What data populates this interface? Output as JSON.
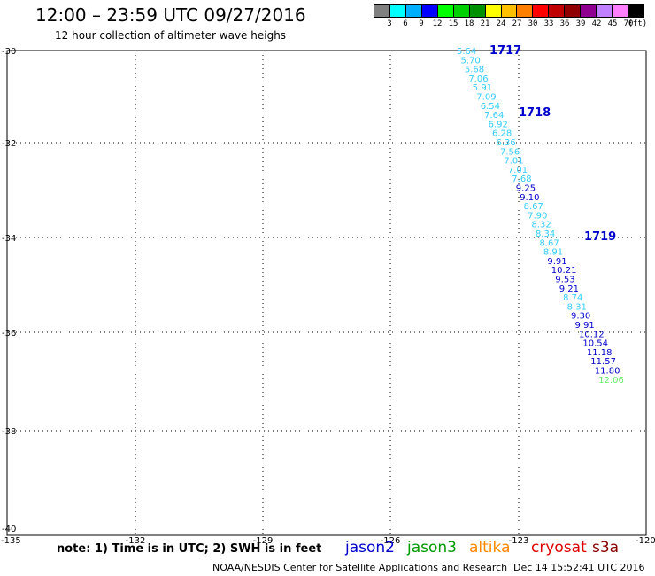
{
  "title": "12:00 – 23:59 UTC 09/27/2016",
  "subtitle": "12 hour collection of altimeter wave heighs",
  "color_scale": {
    "colors": [
      "#808080",
      "#00ffff",
      "#00b0ff",
      "#0000ff",
      "#00ff00",
      "#00d000",
      "#009000",
      "#ffff00",
      "#ffc000",
      "#ff8000",
      "#ff0000",
      "#c00000",
      "#900000",
      "#900090",
      "#c080ff",
      "#ff80ff",
      "#000000"
    ],
    "labels": [
      "3",
      "6",
      "9",
      "12",
      "15",
      "18",
      "21",
      "24",
      "27",
      "30",
      "33",
      "36",
      "39",
      "42",
      "45",
      "70"
    ],
    "unit": "(ft)"
  },
  "axes": {
    "lon_labels": [
      "-135",
      "-132",
      "-129",
      "-126",
      "-123",
      "-120"
    ],
    "lat_labels": [
      "-30",
      "-32",
      "-34",
      "-36",
      "-38",
      "-40"
    ]
  },
  "track_colors": {
    "jason2": "#0000cc",
    "saral": "#33ccff",
    "sentinel": "#66ee66"
  },
  "times": [
    "1717",
    "1718",
    "1719"
  ],
  "track": [
    {
      "v": "5.64",
      "c": "saral"
    },
    {
      "v": "5.70",
      "c": "saral"
    },
    {
      "v": "5.68",
      "c": "saral"
    },
    {
      "v": "7.06",
      "c": "saral"
    },
    {
      "v": "5.91",
      "c": "saral"
    },
    {
      "v": "7.09",
      "c": "saral"
    },
    {
      "v": "6.54",
      "c": "saral"
    },
    {
      "v": "7.64",
      "c": "saral"
    },
    {
      "v": "6.92",
      "c": "saral"
    },
    {
      "v": "6.28",
      "c": "saral"
    },
    {
      "v": "6.36",
      "c": "saral"
    },
    {
      "v": "7.56",
      "c": "saral"
    },
    {
      "v": "7.01",
      "c": "saral"
    },
    {
      "v": "7.01",
      "c": "saral"
    },
    {
      "v": "7.68",
      "c": "saral"
    },
    {
      "v": "9.25",
      "c": "jason2"
    },
    {
      "v": "9.10",
      "c": "jason2"
    },
    {
      "v": "8.67",
      "c": "saral"
    },
    {
      "v": "7.90",
      "c": "saral"
    },
    {
      "v": "8.32",
      "c": "saral"
    },
    {
      "v": "8.34",
      "c": "saral"
    },
    {
      "v": "8.67",
      "c": "saral"
    },
    {
      "v": "8.91",
      "c": "saral"
    },
    {
      "v": "9.91",
      "c": "jason2"
    },
    {
      "v": "10.21",
      "c": "jason2"
    },
    {
      "v": "9.53",
      "c": "jason2"
    },
    {
      "v": "9.21",
      "c": "jason2"
    },
    {
      "v": "8.74",
      "c": "saral"
    },
    {
      "v": "8.31",
      "c": "saral"
    },
    {
      "v": "9.30",
      "c": "jason2"
    },
    {
      "v": "9.91",
      "c": "jason2"
    },
    {
      "v": "10.12",
      "c": "jason2"
    },
    {
      "v": "10.54",
      "c": "jason2"
    },
    {
      "v": "11.18",
      "c": "jason2"
    },
    {
      "v": "11.57",
      "c": "jason2"
    },
    {
      "v": "11.80",
      "c": "jason2"
    },
    {
      "v": "12.06",
      "c": "sentinel"
    }
  ],
  "note": "note: 1) Time is in UTC; 2) SWH is in feet",
  "legend": [
    {
      "name": "jason2",
      "color": "#0000cc"
    },
    {
      "name": "jason3",
      "color": "#009900"
    },
    {
      "name": "altika",
      "color": "#ff8800"
    },
    {
      "name": "cryosat",
      "color": "#dd0000"
    },
    {
      "name": "s3a",
      "color": "#880000"
    }
  ],
  "footer_credit": "NOAA/NESDIS Center for Satellite Applications and Research",
  "footer_timestamp": "Dec 14 15:52:41 UTC 2016"
}
